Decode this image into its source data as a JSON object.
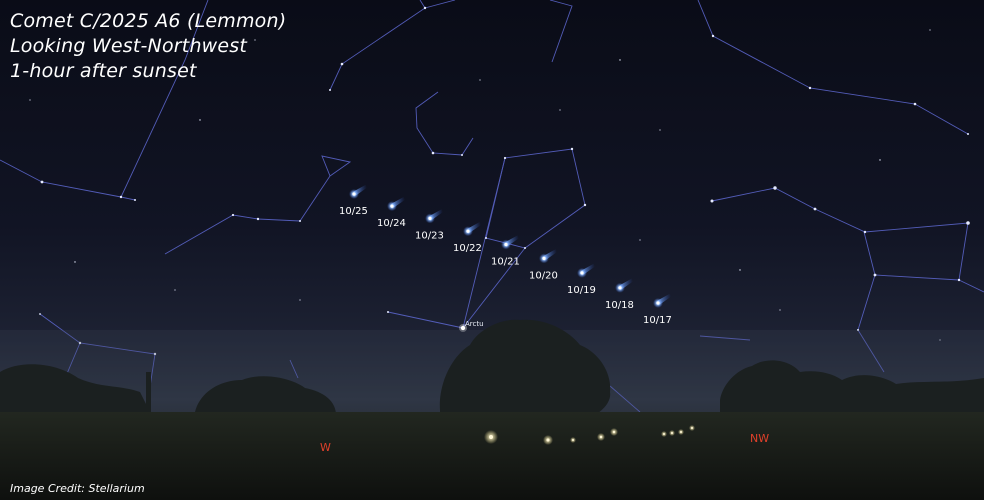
{
  "title": {
    "line1": "Comet C/2025 A6 (Lemmon)",
    "line2": "Looking West-Northwest",
    "line3": "1-hour after sunset"
  },
  "credit": "Image Credit: Stellarium",
  "star_label": "Arctu",
  "compass": {
    "west": "W",
    "northwest": "NW"
  },
  "comet_dates": [
    "10/25",
    "10/24",
    "10/23",
    "10/22",
    "10/21",
    "10/20",
    "10/19",
    "10/18",
    "10/17"
  ],
  "colors": {
    "constellation_lines": "#5a64c8",
    "comet": "#7fb2ff",
    "compass": "#e0402a",
    "text": "#ffffff"
  }
}
